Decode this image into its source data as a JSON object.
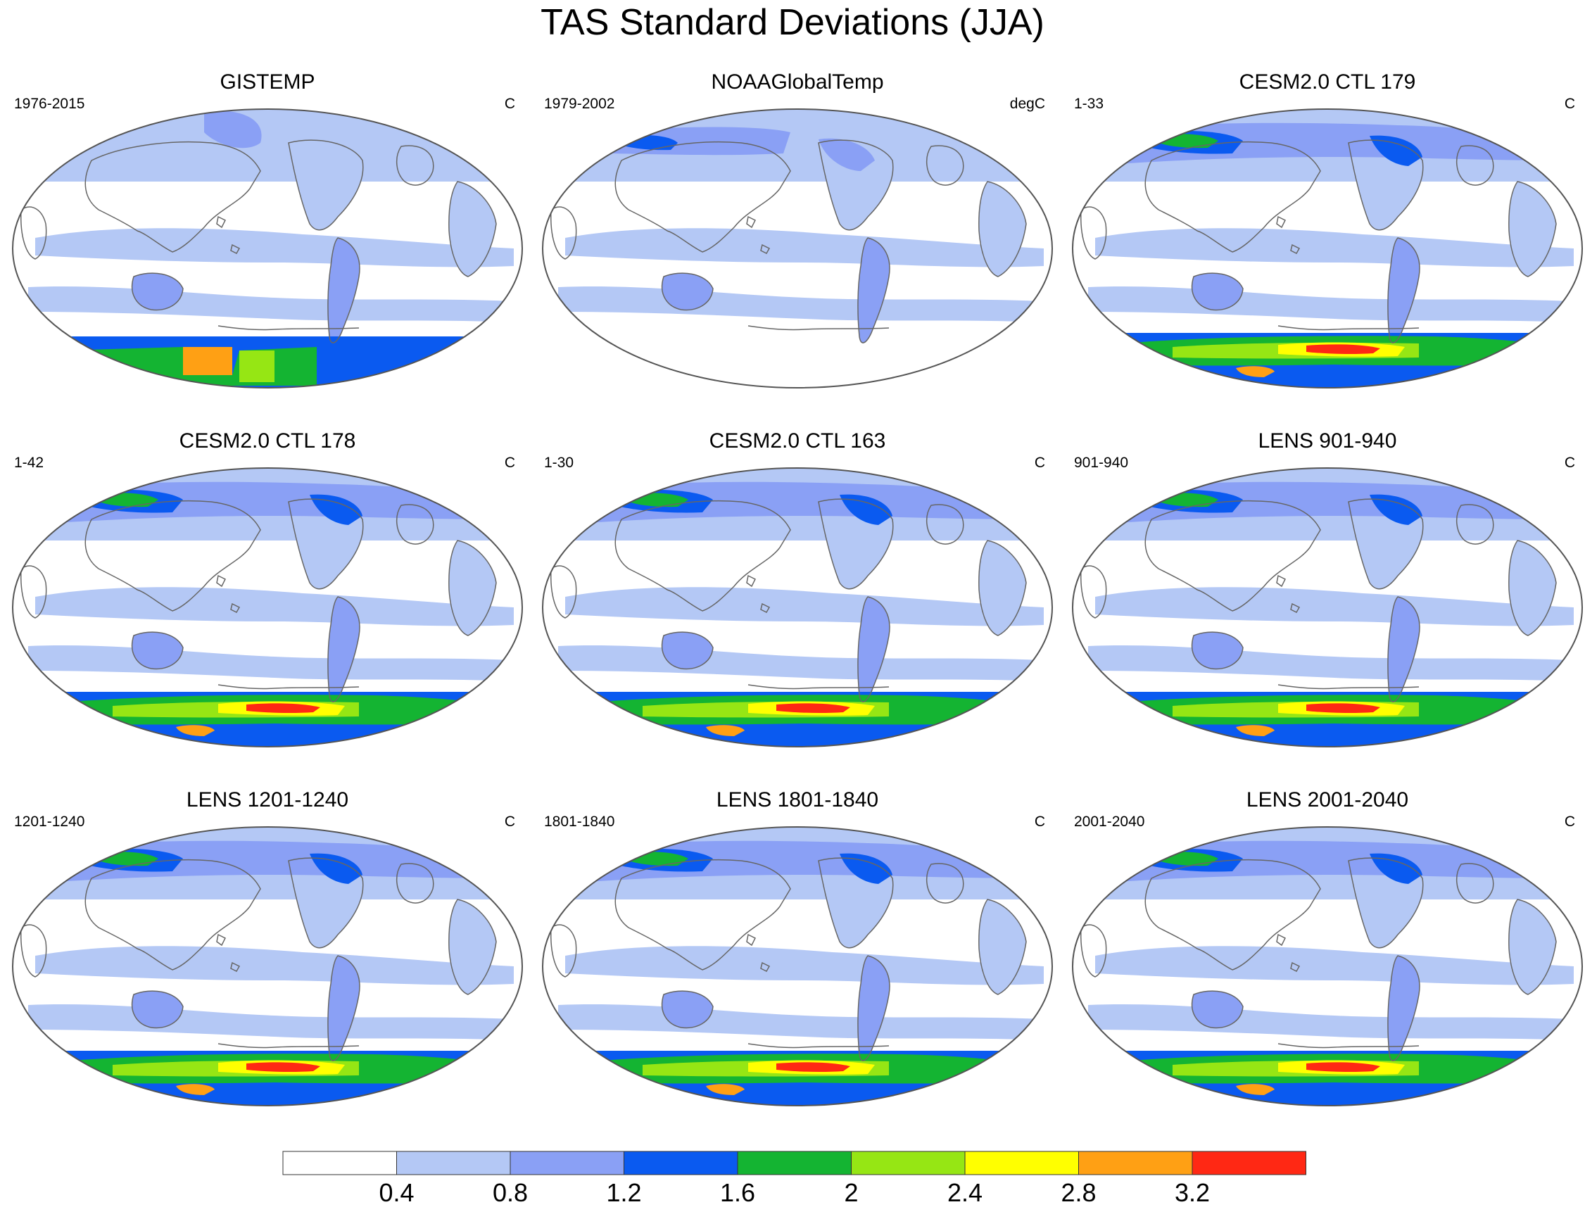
{
  "title": "TAS Standard Deviations (JJA)",
  "panels": [
    {
      "title": "GISTEMP",
      "left": "1976-2015",
      "right": "C",
      "variant": "obs"
    },
    {
      "title": "NOAAGlobalTemp",
      "left": "1979-2002",
      "right": "degC",
      "variant": "noaa"
    },
    {
      "title": "CESM2.0 CTL 179",
      "left": "1-33",
      "right": "C",
      "variant": "model"
    },
    {
      "title": "CESM2.0 CTL 178",
      "left": "1-42",
      "right": "C",
      "variant": "model"
    },
    {
      "title": "CESM2.0 CTL 163",
      "left": "1-30",
      "right": "C",
      "variant": "model"
    },
    {
      "title": "LENS 901-940",
      "left": "901-940",
      "right": "C",
      "variant": "model"
    },
    {
      "title": "LENS 1201-1240",
      "left": "1201-1240",
      "right": "C",
      "variant": "model"
    },
    {
      "title": "LENS 1801-1840",
      "left": "1801-1840",
      "right": "C",
      "variant": "model"
    },
    {
      "title": "LENS 2001-2040",
      "left": "2001-2040",
      "right": "C",
      "variant": "model"
    }
  ],
  "colorbar": {
    "colors": [
      "#ffffff",
      "#b4c8f5",
      "#8aa0f5",
      "#0a5af0",
      "#14b432",
      "#96e614",
      "#ffff00",
      "#ffa014",
      "#ff2814"
    ],
    "labels": [
      "0.4",
      "0.8",
      "1.2",
      "1.6",
      "2",
      "2.4",
      "2.8",
      "3.2"
    ]
  }
}
